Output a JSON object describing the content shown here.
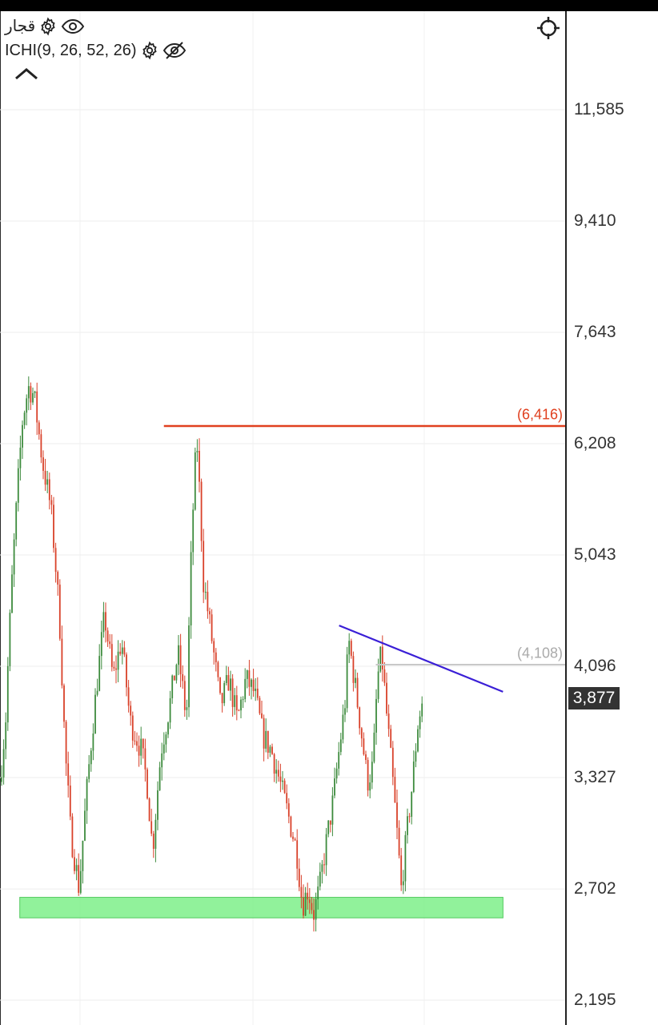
{
  "legend": {
    "symbol": "قجار",
    "indicator": "ICHI(9, 26, 52, 26)"
  },
  "icons": {
    "settings": "gear-icon",
    "visible": "eye-icon",
    "hidden": "eye-off-icon",
    "collapse": "chevron-up-icon",
    "crosshair": "crosshair-icon"
  },
  "colors": {
    "up": "#3d8b3d",
    "down": "#d9412a",
    "resistance": "#e0401f",
    "trendline": "#3a1fd6",
    "level_gray": "#c8c8c8",
    "support_zone": "#7ef08a",
    "badge": "#333333"
  },
  "chart_data": {
    "type": "candlestick",
    "y_scale": "log",
    "y_ticks": [
      "11,585",
      "9,410",
      "7,643",
      "6,208",
      "5,043",
      "4,096",
      "3,327",
      "2,702",
      "2,195"
    ],
    "last_price": "3,877",
    "levels": [
      {
        "label": "(6,416)",
        "value": 6416,
        "x_from": 0.29,
        "x_to": 1.0,
        "color": "resistance"
      },
      {
        "label": "(4,108)",
        "value": 4108,
        "x_from": 0.665,
        "x_to": 1.0,
        "color": "level_gray"
      }
    ],
    "trendline": {
      "from": {
        "x": 0.6,
        "y": 4420
      },
      "to": {
        "x": 0.89,
        "y": 3905
      }
    },
    "support_zone": {
      "from": 2560,
      "to": 2660,
      "x_from": 0.035,
      "x_to": 0.89
    },
    "series_waypoints": [
      [
        0.0,
        3300
      ],
      [
        0.01,
        3700
      ],
      [
        0.02,
        4700
      ],
      [
        0.03,
        5600
      ],
      [
        0.04,
        6500
      ],
      [
        0.05,
        6900
      ],
      [
        0.06,
        6800
      ],
      [
        0.075,
        6000
      ],
      [
        0.09,
        5500
      ],
      [
        0.105,
        4500
      ],
      [
        0.115,
        3500
      ],
      [
        0.125,
        3000
      ],
      [
        0.14,
        2700
      ],
      [
        0.155,
        3300
      ],
      [
        0.17,
        3900
      ],
      [
        0.185,
        4500
      ],
      [
        0.2,
        4000
      ],
      [
        0.215,
        4300
      ],
      [
        0.23,
        3700
      ],
      [
        0.25,
        3500
      ],
      [
        0.26,
        3300
      ],
      [
        0.27,
        2900
      ],
      [
        0.285,
        3500
      ],
      [
        0.3,
        3800
      ],
      [
        0.315,
        4200
      ],
      [
        0.33,
        3700
      ],
      [
        0.34,
        5300
      ],
      [
        0.348,
        6300
      ],
      [
        0.36,
        4800
      ],
      [
        0.375,
        4300
      ],
      [
        0.39,
        3800
      ],
      [
        0.405,
        4000
      ],
      [
        0.42,
        3700
      ],
      [
        0.435,
        4000
      ],
      [
        0.45,
        3900
      ],
      [
        0.465,
        3600
      ],
      [
        0.48,
        3500
      ],
      [
        0.495,
        3300
      ],
      [
        0.51,
        3100
      ],
      [
        0.525,
        2900
      ],
      [
        0.535,
        2620
      ],
      [
        0.545,
        2700
      ],
      [
        0.555,
        2580
      ],
      [
        0.565,
        2700
      ],
      [
        0.575,
        2900
      ],
      [
        0.59,
        3200
      ],
      [
        0.6,
        3500
      ],
      [
        0.61,
        3800
      ],
      [
        0.617,
        4300
      ],
      [
        0.63,
        3900
      ],
      [
        0.64,
        3600
      ],
      [
        0.65,
        3300
      ],
      [
        0.66,
        3400
      ],
      [
        0.668,
        4000
      ],
      [
        0.675,
        4200
      ],
      [
        0.685,
        3700
      ],
      [
        0.7,
        3100
      ],
      [
        0.71,
        2700
      ],
      [
        0.72,
        3000
      ],
      [
        0.73,
        3300
      ],
      [
        0.74,
        3700
      ],
      [
        0.75,
        3877
      ]
    ]
  }
}
